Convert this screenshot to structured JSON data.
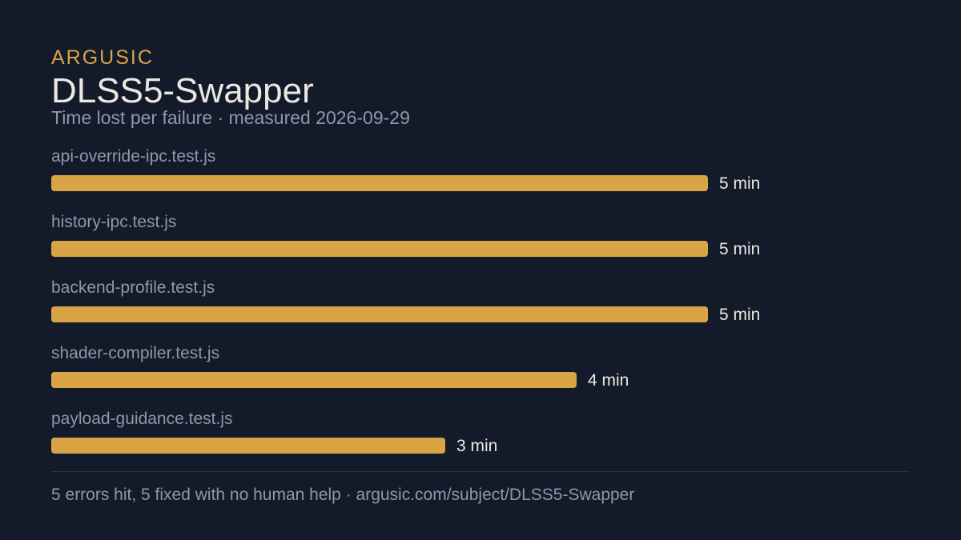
{
  "header": {
    "brand": "ARGUSIC",
    "title": "DLSS5-Swapper",
    "subtitle": "Time lost per failure · measured 2026-09-29"
  },
  "chart_data": {
    "type": "bar",
    "orientation": "horizontal",
    "categories": [
      "api-override-ipc.test.js",
      "history-ipc.test.js",
      "backend-profile.test.js",
      "shader-compiler.test.js",
      "payload-guidance.test.js"
    ],
    "values": [
      5,
      5,
      5,
      4,
      3
    ],
    "value_labels": [
      "5 min",
      "5 min",
      "5 min",
      "4 min",
      "3 min"
    ],
    "unit": "min",
    "xlim": [
      0,
      5
    ],
    "grid": false,
    "bar_color": "#d9a444"
  },
  "footer": {
    "text": "5 errors hit, 5 fixed with no human help · argusic.com/subject/DLSS5-Swapper"
  },
  "colors": {
    "background": "#131b2b",
    "accent": "#d9a444",
    "label": "#8f98a8",
    "value": "#ece8e1"
  }
}
